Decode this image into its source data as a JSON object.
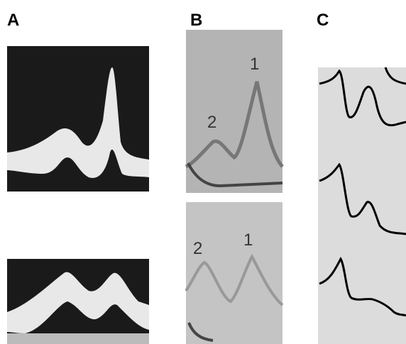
{
  "panels": [
    {
      "label": "A"
    },
    {
      "label": "B",
      "top_peak_labels": [
        "2",
        "1"
      ],
      "bottom_peak_labels": [
        "2",
        "1"
      ]
    },
    {
      "label": "C"
    }
  ]
}
